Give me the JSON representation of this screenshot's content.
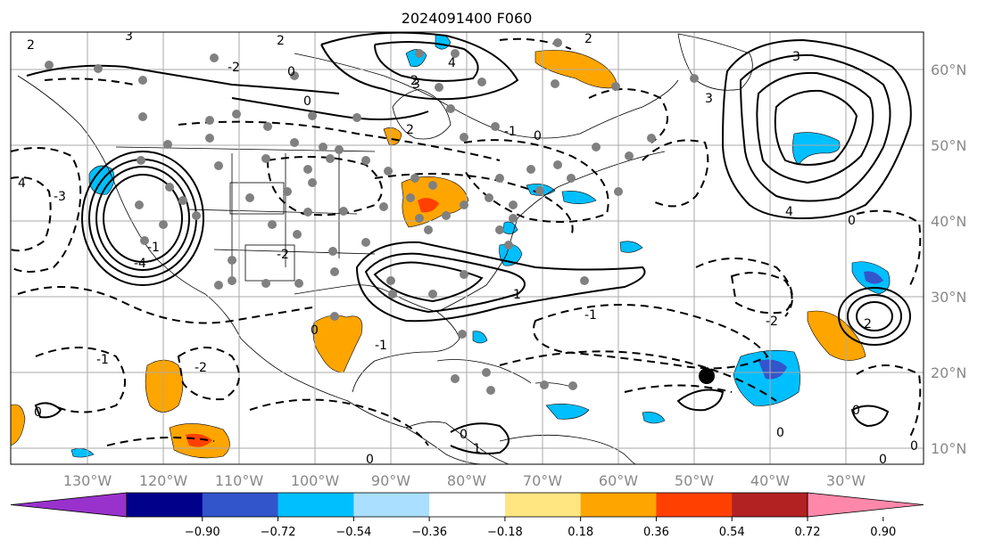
{
  "title": "2024091400 F060",
  "lon_labels": [
    "130°W",
    "120°W",
    "110°W",
    "100°W",
    "90°W",
    "80°W",
    "70°W",
    "60°W",
    "50°W",
    "40°W",
    "30°W"
  ],
  "lat_labels": [
    "60°N",
    "50°N",
    "40°N",
    "30°N",
    "20°N",
    "10°N"
  ],
  "colorbar": {
    "tick_labels": [
      "−0.90",
      "−0.72",
      "−0.54",
      "−0.36",
      "−0.18",
      "0.18",
      "0.36",
      "0.54",
      "0.72",
      "0.90"
    ],
    "colors": [
      "#9932cc",
      "#00008b",
      "#3355cc",
      "#00bfff",
      "#aadfff",
      "#ffffff",
      "#ffe680",
      "#ffa500",
      "#ff4000",
      "#b22222",
      "#ff88aa"
    ]
  },
  "map": {
    "land_color": "#ffffff",
    "grid_color": "#aaaaaa",
    "contour_color": "#000000",
    "contour_labels": [
      "2",
      "3",
      "-2",
      "-3",
      "0",
      "-1",
      "1",
      "4",
      "-4",
      "1",
      "-2",
      "0",
      "-1",
      "2",
      "3",
      "4",
      "-2",
      "-1",
      "0",
      "1",
      "-1",
      "-2",
      "0",
      "-1",
      "1",
      "0",
      "0",
      "-1",
      "0",
      "2",
      "-2",
      "0"
    ],
    "marker": "black-dot-storm-center"
  }
}
